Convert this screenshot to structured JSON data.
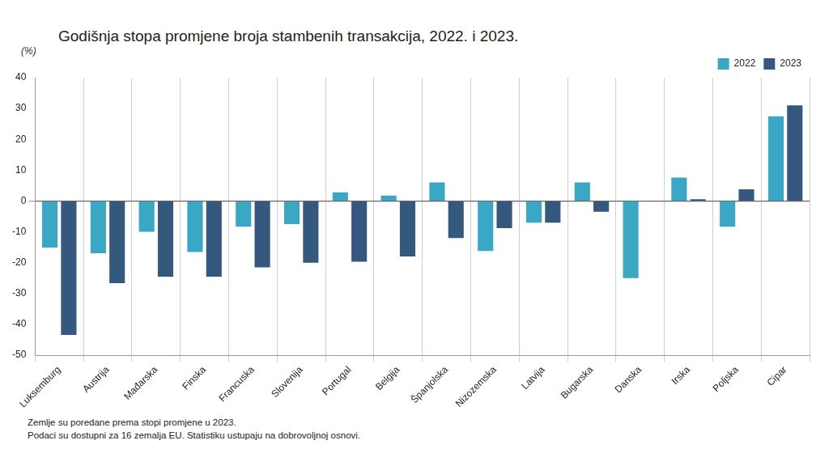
{
  "chart_data": {
    "type": "bar",
    "title": "Godišnja stopa promjene broja stambenih transakcija, 2022. i 2023.",
    "y_label": "(%)",
    "categories": [
      "Luksemburg",
      "Austrija",
      "Mađarska",
      "Finska",
      "Francuska",
      "Slovenija",
      "Portugal",
      "Belgija",
      "Španjolska",
      "Nizozemska",
      "Latvija",
      "Bugarska",
      "Danska",
      "Irska",
      "Poljska",
      "Cipar"
    ],
    "series": [
      {
        "name": "2022",
        "color": "#3aa7c4",
        "values": [
          -15.1,
          -16.9,
          -10,
          -16.5,
          -8.3,
          -7.5,
          2.8,
          1.8,
          6,
          -16.2,
          -7,
          6,
          -25,
          7.6,
          -8.3,
          27.5
        ]
      },
      {
        "name": "2023",
        "color": "#35587f",
        "values": [
          -43.4,
          -26.6,
          -24.5,
          -24.5,
          -21.5,
          -20,
          -19.7,
          -18,
          -12,
          -8.8,
          -7,
          -3.5,
          0,
          0.6,
          3.8,
          31
        ]
      }
    ],
    "ylim": [
      -50,
      40
    ],
    "yticks": [
      -50,
      -40,
      -30,
      -20,
      -10,
      0,
      10,
      20,
      30,
      40
    ],
    "grid": true,
    "legend": "top-right",
    "notes": [
      "Zemlje su poredane prema stopi promjene u 2023.",
      "Podaci su dostupni za 16 zemalja EU. Statistiku ustupaju na dobrovoljnoj osnovi."
    ]
  }
}
